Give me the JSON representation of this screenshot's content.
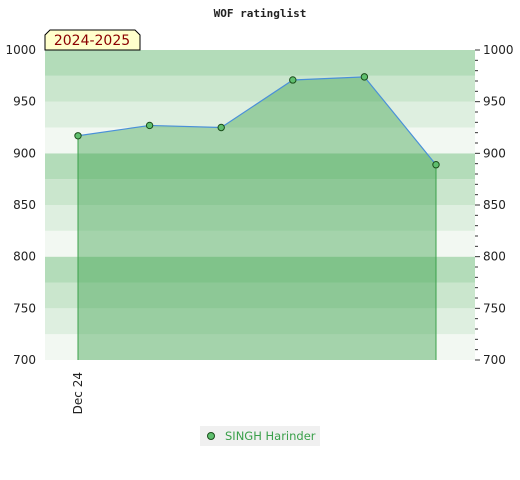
{
  "chart_data": {
    "type": "area",
    "title": "WOF ratinglist",
    "season_label": "2024-2025",
    "xlabel": "",
    "ylabel": "",
    "x_ticks": [
      "Dec 24"
    ],
    "ylim": [
      700,
      1000
    ],
    "y_ticks": [
      700,
      750,
      800,
      850,
      900,
      950,
      1000
    ],
    "grid": "horizontal bands",
    "legend_position": "bottom-center",
    "series": [
      {
        "name": "SINGH Harinder",
        "color": "#3aa04a",
        "values": [
          917,
          927,
          925,
          971,
          974,
          889
        ]
      }
    ]
  }
}
